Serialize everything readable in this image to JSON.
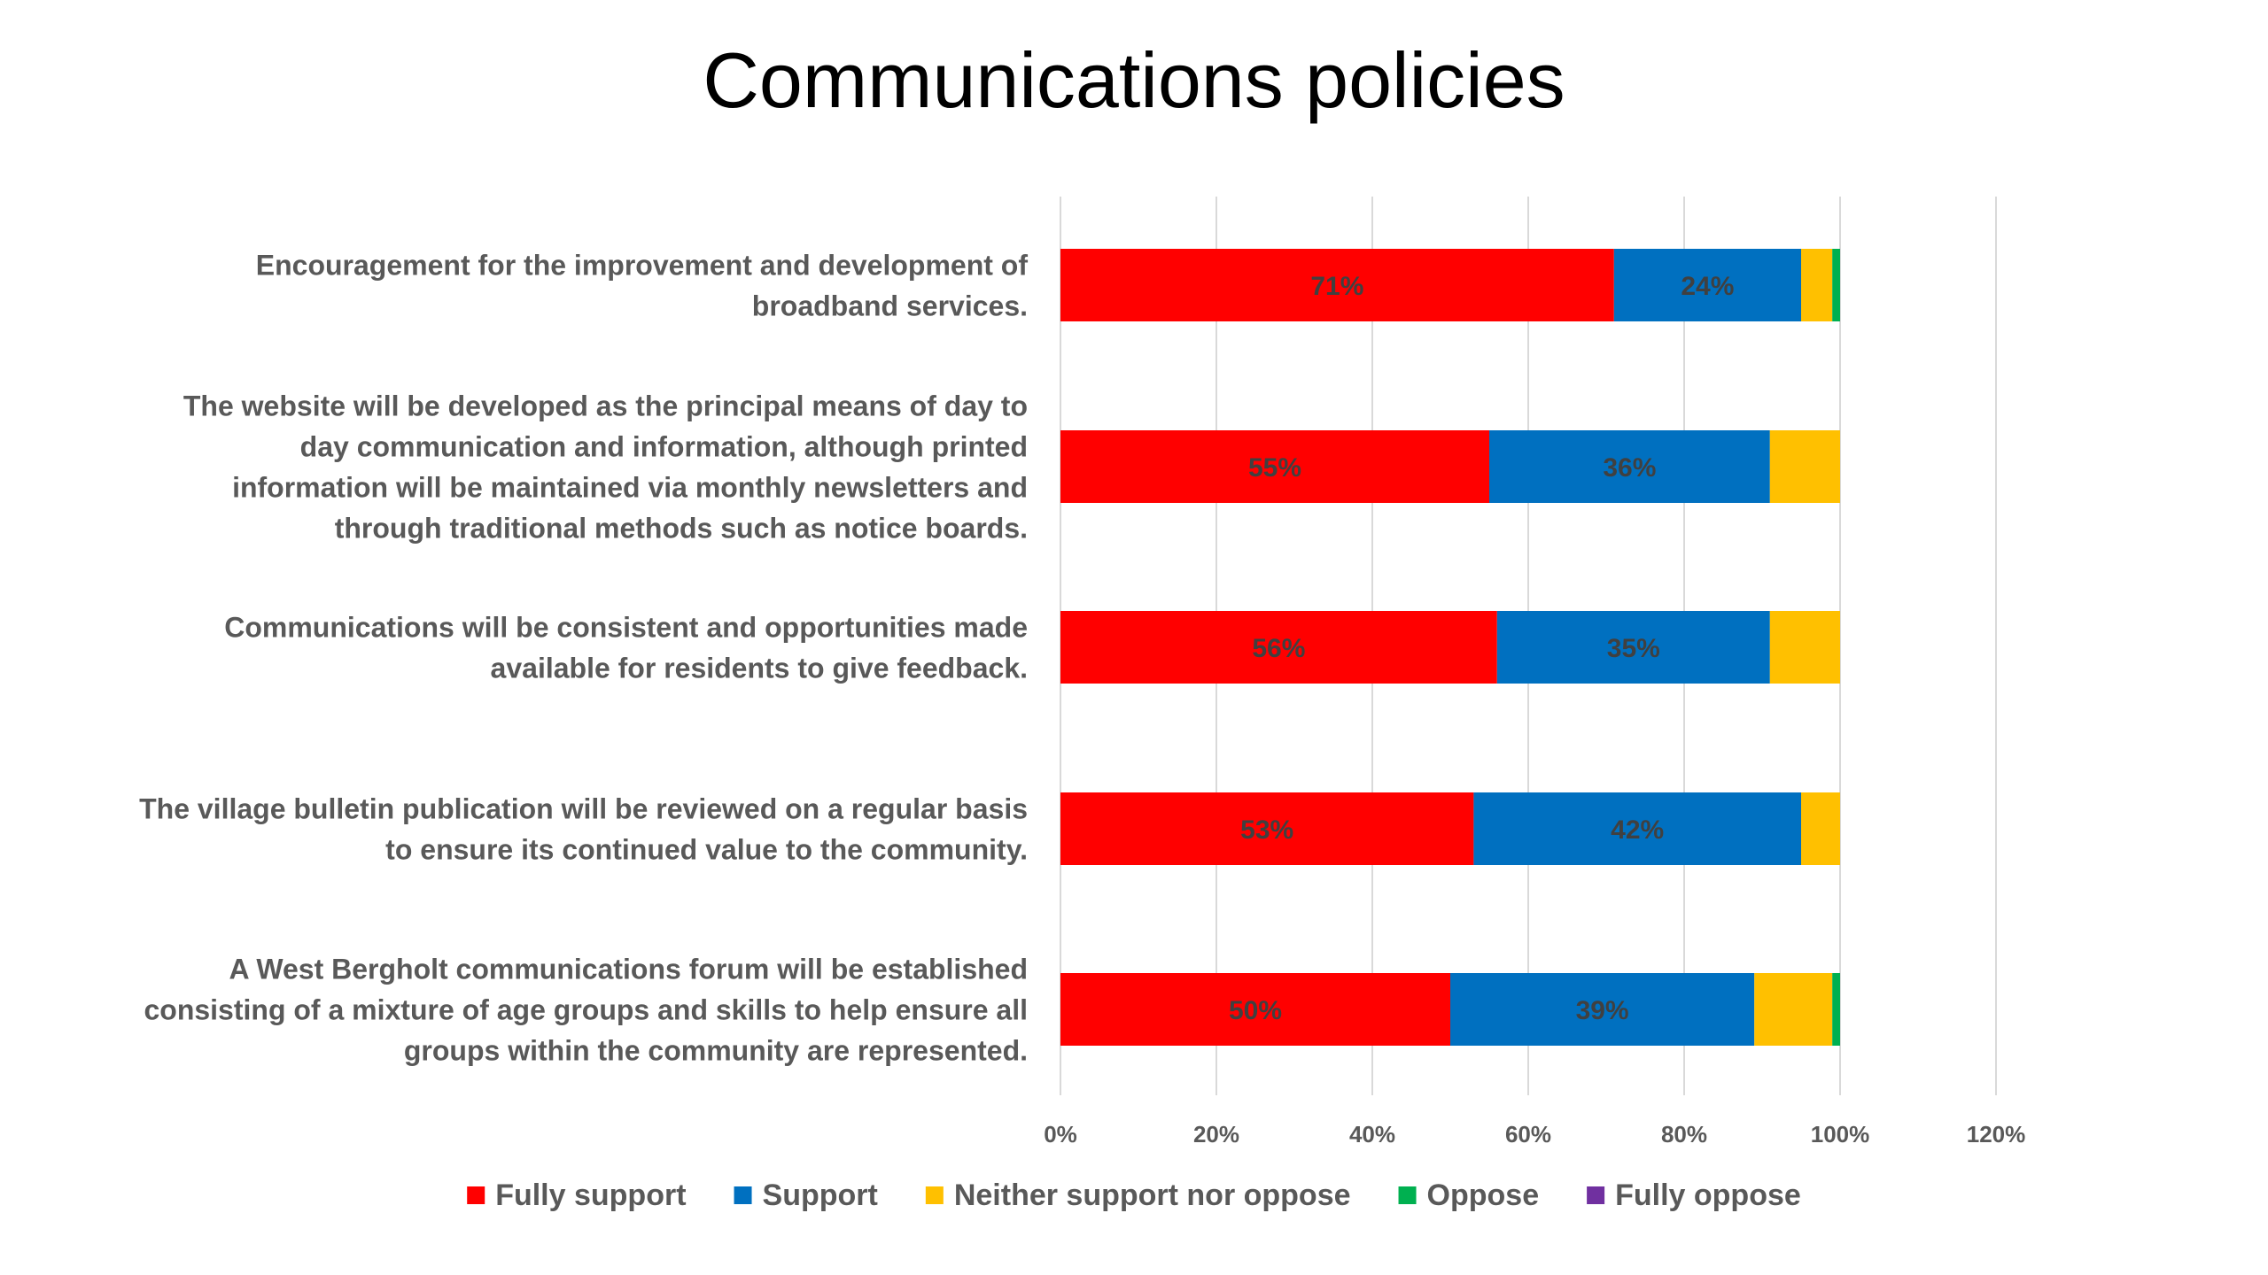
{
  "chart_data": {
    "type": "bar",
    "orientation": "horizontal",
    "stacked": true,
    "title": "Communications policies",
    "categories": [
      "Encouragement for the improvement and development of broadband services.",
      "The website will be developed as the principal means of day to day communication and information, although printed information will be maintained via monthly newsletters and through traditional methods such as notice boards.",
      "Communications will be consistent and opportunities made available for residents to give feedback.",
      "The village bulletin publication will be reviewed on a regular basis to ensure its continued value to the community.",
      "A West Bergholt communications forum will be established consisting of a mixture of age groups and skills to help ensure all groups within the community are represented."
    ],
    "category_lines": [
      [
        "Encouragement for the improvement and development of",
        "broadband services."
      ],
      [
        "The website will be developed as the principal means of day to",
        "day communication and information, although printed",
        "information will be maintained via monthly newsletters and",
        "through traditional methods such as notice boards."
      ],
      [
        "Communications will be consistent and opportunities made",
        "available for residents to give feedback."
      ],
      [
        "The village bulletin publication will be reviewed on a regular basis",
        "to ensure its continued value to the community."
      ],
      [
        "A West Bergholt communications forum will be established",
        "consisting of a mixture of age groups and skills to help ensure all",
        "groups within the community are represented."
      ]
    ],
    "series": [
      {
        "name": "Fully support",
        "color": "#FF0000",
        "values": [
          71,
          55,
          56,
          53,
          50
        ],
        "labels": [
          "71%",
          "55%",
          "56%",
          "53%",
          "50%"
        ]
      },
      {
        "name": "Support",
        "color": "#0070C0",
        "values": [
          24,
          36,
          35,
          42,
          39
        ],
        "labels": [
          "24%",
          "36%",
          "35%",
          "42%",
          "39%"
        ]
      },
      {
        "name": "Neither support nor oppose",
        "color": "#FFC000",
        "values": [
          4,
          9,
          9,
          5,
          10
        ],
        "labels": [
          "",
          "",
          "",
          "",
          ""
        ]
      },
      {
        "name": "Oppose",
        "color": "#00B050",
        "values": [
          1,
          0,
          0,
          0,
          1
        ],
        "labels": [
          "",
          "",
          "",
          "",
          ""
        ]
      },
      {
        "name": "Fully oppose",
        "color": "#7030A0",
        "values": [
          0,
          0,
          0,
          0,
          0
        ],
        "labels": [
          "",
          "",
          "",
          "",
          ""
        ]
      }
    ],
    "xlim": [
      0,
      120
    ],
    "xticks": [
      "0%",
      "20%",
      "40%",
      "60%",
      "80%",
      "100%",
      "120%"
    ],
    "xtick_values": [
      0,
      20,
      40,
      60,
      80,
      100,
      120
    ],
    "grid": true,
    "legend": "bottom",
    "colors": {
      "grid": "#D9D9D9",
      "axis_text": "#595959",
      "label_text": "#404040"
    }
  }
}
